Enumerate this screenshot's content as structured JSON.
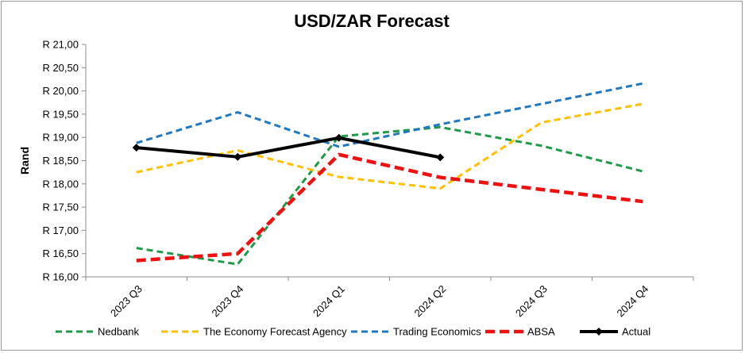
{
  "chart_data": {
    "type": "line",
    "title": "USD/ZAR Forecast",
    "ylabel": "Rand",
    "xlabel": "",
    "ylim": [
      16.0,
      21.0
    ],
    "yticks": [
      "R 16,00",
      "R 16,50",
      "R 17,00",
      "R 17,50",
      "R 18,00",
      "R 18,50",
      "R 19,00",
      "R 19,50",
      "R 20,00",
      "R 20,50",
      "R 21,00"
    ],
    "categories": [
      "2023 Q3",
      "2023 Q4",
      "2024 Q1",
      "2024 Q2",
      "2024 Q3",
      "2024 Q4"
    ],
    "grid": false,
    "legend": "bottom",
    "series": [
      {
        "name": "Nedbank",
        "color": "#1e9a48",
        "style": "dashed",
        "values": [
          16.62,
          16.27,
          19.02,
          19.22,
          18.82,
          18.27
        ]
      },
      {
        "name": "The Economy Forecast Agency",
        "color": "#ffc000",
        "style": "dashed",
        "values": [
          18.25,
          18.72,
          18.15,
          17.9,
          19.32,
          19.72
        ]
      },
      {
        "name": "Trading Economics",
        "color": "#1f78c1",
        "style": "dashed",
        "values": [
          18.88,
          19.54,
          18.8,
          19.28,
          19.72,
          20.16
        ]
      },
      {
        "name": "ABSA",
        "color": "#ee1111",
        "style": "dashed-thick",
        "values": [
          16.35,
          16.5,
          18.63,
          18.14,
          17.88,
          17.62
        ]
      },
      {
        "name": "Actual",
        "color": "#000000",
        "style": "solid-diamond",
        "values": [
          18.78,
          18.58,
          18.99,
          18.57,
          null,
          null
        ]
      }
    ]
  }
}
